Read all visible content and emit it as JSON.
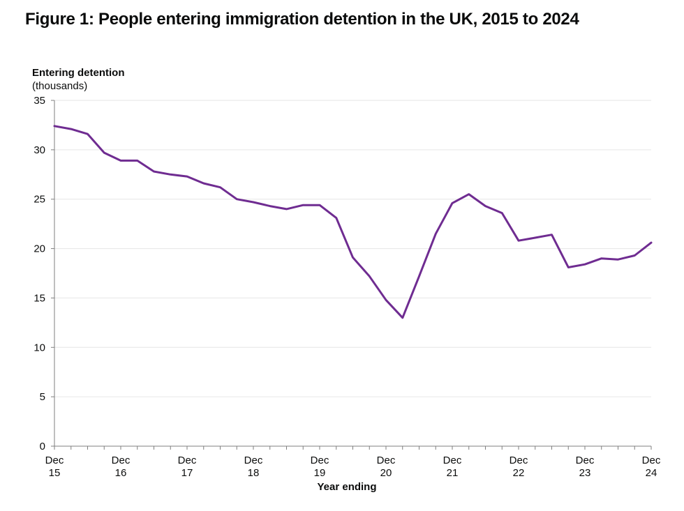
{
  "title": "Figure 1: People entering immigration detention in the UK, 2015 to 2024",
  "chart_data": {
    "type": "line",
    "title": "Figure 1: People entering immigration detention in the UK, 2015 to 2024",
    "ylabel": "Entering detention",
    "ylabel_sub": "(thousands)",
    "xlabel": "Year ending",
    "ylim": [
      0,
      35
    ],
    "yticks": [
      0,
      5,
      10,
      15,
      20,
      25,
      30,
      35
    ],
    "grid": true,
    "x_ticks": [
      {
        "index": 0,
        "line1": "Dec",
        "line2": "15"
      },
      {
        "index": 4,
        "line1": "Dec",
        "line2": "16"
      },
      {
        "index": 8,
        "line1": "Dec",
        "line2": "17"
      },
      {
        "index": 12,
        "line1": "Dec",
        "line2": "18"
      },
      {
        "index": 16,
        "line1": "Dec",
        "line2": "19"
      },
      {
        "index": 20,
        "line1": "Dec",
        "line2": "20"
      },
      {
        "index": 24,
        "line1": "Dec",
        "line2": "21"
      },
      {
        "index": 28,
        "line1": "Dec",
        "line2": "22"
      },
      {
        "index": 32,
        "line1": "Dec",
        "line2": "23"
      },
      {
        "index": 36,
        "line1": "Dec",
        "line2": "24"
      }
    ],
    "x": [
      "Dec 15",
      "Mar 16",
      "Jun 16",
      "Sep 16",
      "Dec 16",
      "Mar 17",
      "Jun 17",
      "Sep 17",
      "Dec 17",
      "Mar 18",
      "Jun 18",
      "Sep 18",
      "Dec 18",
      "Mar 19",
      "Jun 19",
      "Sep 19",
      "Dec 19",
      "Mar 20",
      "Jun 20",
      "Sep 20",
      "Dec 20",
      "Mar 21",
      "Jun 21",
      "Sep 21",
      "Dec 21",
      "Mar 22",
      "Jun 22",
      "Sep 22",
      "Dec 22",
      "Mar 23",
      "Jun 23",
      "Sep 23",
      "Dec 23",
      "Mar 24",
      "Jun 24",
      "Sep 24",
      "Dec 24"
    ],
    "series": [
      {
        "name": "Entering detention",
        "color": "#6f2c91",
        "values": [
          32.4,
          32.1,
          31.6,
          29.7,
          28.9,
          28.9,
          27.8,
          27.5,
          27.3,
          26.6,
          26.2,
          25.0,
          24.7,
          24.3,
          24.0,
          24.4,
          24.4,
          23.1,
          19.1,
          17.2,
          14.8,
          13.0,
          17.2,
          21.5,
          24.6,
          25.5,
          24.3,
          23.6,
          20.8,
          21.1,
          21.4,
          18.1,
          18.4,
          19.0,
          18.9,
          19.3,
          20.6
        ]
      }
    ]
  }
}
